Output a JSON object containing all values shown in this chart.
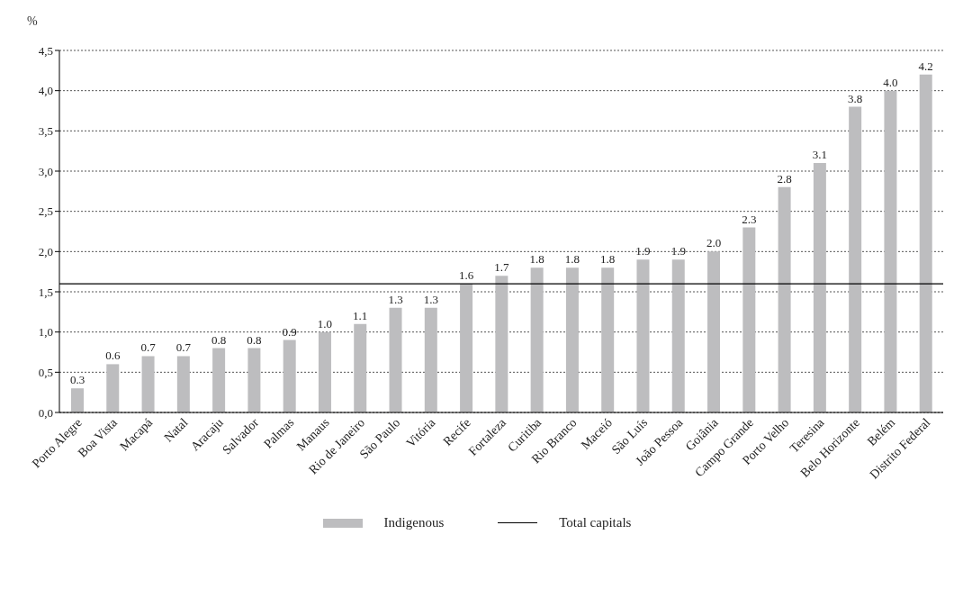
{
  "chart_data": {
    "type": "bar",
    "ylabel": "%",
    "categories": [
      "Porto Alegre",
      "Boa Vista",
      "Macapá",
      "Natal",
      "Aracaju",
      "Salvador",
      "Palmas",
      "Manaus",
      "Rio de Janeiro",
      "São Paulo",
      "Vitória",
      "Recife",
      "Fortaleza",
      "Curitiba",
      "Rio Branco",
      "Maceió",
      "São Luís",
      "João Pessoa",
      "Goiânia",
      "Campo Grande",
      "Porto Velho",
      "Teresina",
      "Belo Horizonte",
      "Belém",
      "Distrito Federal"
    ],
    "series": [
      {
        "name": "Indigenous",
        "color": "#bdbdbf",
        "values": [
          0.3,
          0.6,
          0.7,
          0.7,
          0.8,
          0.8,
          0.9,
          1.0,
          1.1,
          1.3,
          1.3,
          1.6,
          1.7,
          1.8,
          1.8,
          1.8,
          1.9,
          1.9,
          2.0,
          2.3,
          2.8,
          3.1,
          3.8,
          4.0,
          4.2
        ],
        "value_labels": [
          "0.3",
          "0.6",
          "0.7",
          "0.7",
          "0.8",
          "0.8",
          "0.9",
          "1.0",
          "1.1",
          "1.3",
          "1.3",
          "1.6",
          "1.7",
          "1.8",
          "1.8",
          "1.8",
          "1.9",
          "1.9",
          "2.0",
          "2.3",
          "2.8",
          "3.1",
          "3.8",
          "4.0",
          "4.2"
        ]
      }
    ],
    "ref_lines": [
      {
        "axis": "y",
        "value": 1.6,
        "label": "Total capitals",
        "color": "#000000"
      }
    ],
    "ylim": [
      0,
      4.5
    ],
    "yticks": [
      {
        "value": 0,
        "label": "0,0"
      },
      {
        "value": 0.5,
        "label": "0,5"
      },
      {
        "value": 1,
        "label": "1,0"
      },
      {
        "value": 1.5,
        "label": "1,5"
      },
      {
        "value": 2,
        "label": "2,0"
      },
      {
        "value": 2.5,
        "label": "2,5"
      },
      {
        "value": 3,
        "label": "3,0"
      },
      {
        "value": 3.5,
        "label": "3,5"
      },
      {
        "value": 4,
        "label": "4,0"
      },
      {
        "value": 4.5,
        "label": "4,5"
      }
    ],
    "grid": "y",
    "legend": "bottom"
  }
}
